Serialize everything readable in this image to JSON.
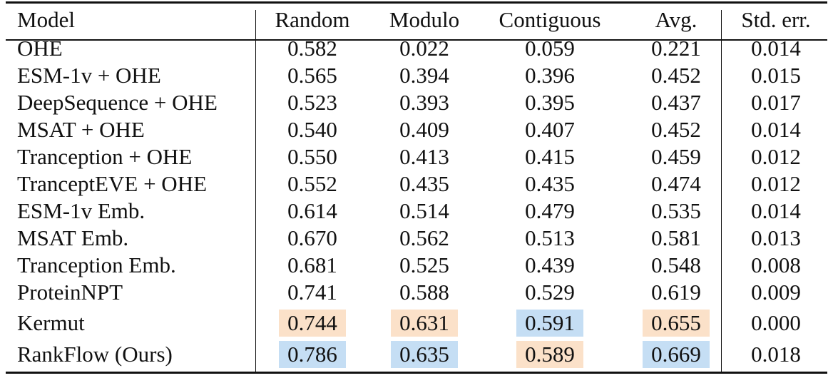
{
  "table": {
    "columns": [
      "Model",
      "Random",
      "Modulo",
      "Contiguous",
      "Avg.",
      "Std. err."
    ],
    "rows": [
      {
        "model": "OHE",
        "random": "0.582",
        "modulo": "0.022",
        "contiguous": "0.059",
        "avg": "0.221",
        "stderr": "0.014"
      },
      {
        "model": "ESM-1v + OHE",
        "random": "0.565",
        "modulo": "0.394",
        "contiguous": "0.396",
        "avg": "0.452",
        "stderr": "0.015"
      },
      {
        "model": "DeepSequence + OHE",
        "random": "0.523",
        "modulo": "0.393",
        "contiguous": "0.395",
        "avg": "0.437",
        "stderr": "0.017"
      },
      {
        "model": "MSAT + OHE",
        "random": "0.540",
        "modulo": "0.409",
        "contiguous": "0.407",
        "avg": "0.452",
        "stderr": "0.014"
      },
      {
        "model": "Tranception + OHE",
        "random": "0.550",
        "modulo": "0.413",
        "contiguous": "0.415",
        "avg": "0.459",
        "stderr": "0.012"
      },
      {
        "model": "TranceptEVE + OHE",
        "random": "0.552",
        "modulo": "0.435",
        "contiguous": "0.435",
        "avg": "0.474",
        "stderr": "0.012"
      },
      {
        "model": "ESM-1v Emb.",
        "random": "0.614",
        "modulo": "0.514",
        "contiguous": "0.479",
        "avg": "0.535",
        "stderr": "0.014"
      },
      {
        "model": "MSAT Emb.",
        "random": "0.670",
        "modulo": "0.562",
        "contiguous": "0.513",
        "avg": "0.581",
        "stderr": "0.013"
      },
      {
        "model": "Tranception Emb.",
        "random": "0.681",
        "modulo": "0.525",
        "contiguous": "0.439",
        "avg": "0.548",
        "stderr": "0.008"
      },
      {
        "model": "ProteinNPT",
        "random": "0.741",
        "modulo": "0.588",
        "contiguous": "0.529",
        "avg": "0.619",
        "stderr": "0.009"
      },
      {
        "model": "Kermut",
        "random": "0.744",
        "modulo": "0.631",
        "contiguous": "0.591",
        "avg": "0.655",
        "stderr": "0.000"
      },
      {
        "model": "RankFlow (Ours)",
        "random": "0.786",
        "modulo": "0.635",
        "contiguous": "0.589",
        "avg": "0.669",
        "stderr": "0.018"
      }
    ]
  },
  "highlight_colors": {
    "orange": "#fbe1c9",
    "blue": "#c5def4"
  }
}
